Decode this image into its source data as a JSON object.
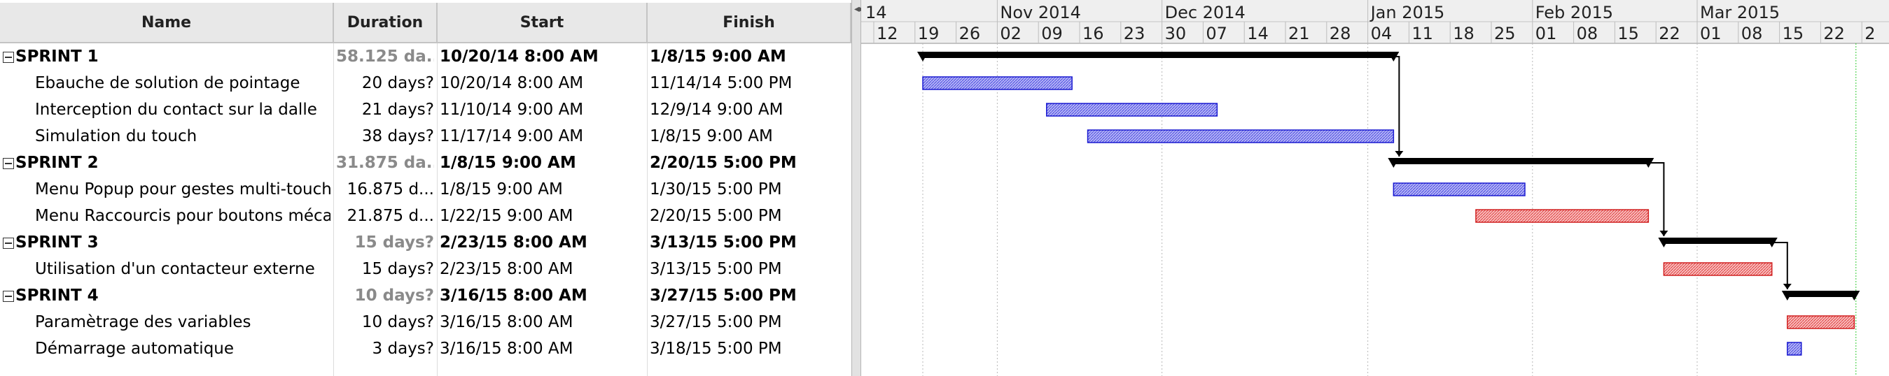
{
  "table": {
    "headers": {
      "name": "Name",
      "duration": "Duration",
      "start": "Start",
      "finish": "Finish"
    },
    "rows": [
      {
        "name": "SPRINT 1",
        "duration": "58.125 da...",
        "start": "10/20/14 8:00 AM",
        "finish": "1/8/15 9:00 AM",
        "summary": true
      },
      {
        "name": "Ebauche de solution de pointage",
        "duration": "20 days?",
        "start": "10/20/14 8:00 AM",
        "finish": "11/14/14 5:00 PM",
        "summary": false
      },
      {
        "name": "Interception du contact sur la dalle",
        "duration": "21 days?",
        "start": "11/10/14 9:00 AM",
        "finish": "12/9/14 9:00 AM",
        "summary": false
      },
      {
        "name": "Simulation du touch",
        "duration": "38 days?",
        "start": "11/17/14 9:00 AM",
        "finish": "1/8/15 9:00 AM",
        "summary": false
      },
      {
        "name": "SPRINT 2",
        "duration": "31.875 da...",
        "start": "1/8/15 9:00 AM",
        "finish": "2/20/15 5:00 PM",
        "summary": true
      },
      {
        "name": "Menu Popup pour gestes multi-touch",
        "duration": "16.875 d...",
        "start": "1/8/15 9:00 AM",
        "finish": "1/30/15 5:00 PM",
        "summary": false
      },
      {
        "name": "Menu Raccourcis pour boutons méca",
        "duration": "21.875 d...",
        "start": "1/22/15 9:00 AM",
        "finish": "2/20/15 5:00 PM",
        "summary": false
      },
      {
        "name": "SPRINT 3",
        "duration": "15 days?",
        "start": "2/23/15 8:00 AM",
        "finish": "3/13/15 5:00 PM",
        "summary": true
      },
      {
        "name": "Utilisation d'un contacteur externe",
        "duration": "15 days?",
        "start": "2/23/15 8:00 AM",
        "finish": "3/13/15 5:00 PM",
        "summary": false
      },
      {
        "name": "SPRINT 4",
        "duration": "10 days?",
        "start": "3/16/15 8:00 AM",
        "finish": "3/27/15 5:00 PM",
        "summary": true
      },
      {
        "name": "Paramètrage des variables",
        "duration": "10 days?",
        "start": "3/16/15 8:00 AM",
        "finish": "3/27/15 5:00 PM",
        "summary": false
      },
      {
        "name": "Démarrage automatique",
        "duration": "3 days?",
        "start": "3/16/15 8:00 AM",
        "finish": "3/18/15 5:00 PM",
        "summary": false
      }
    ]
  },
  "splitter": {
    "grip_icon": "◂▸"
  },
  "timeline": {
    "months": [
      {
        "label": "14",
        "date": "2014-10-12"
      },
      {
        "label": "Nov 2014",
        "date": "2014-11-02"
      },
      {
        "label": "Dec 2014",
        "date": "2014-11-30"
      },
      {
        "label": "Jan 2015",
        "date": "2015-01-04"
      },
      {
        "label": "Feb 2015",
        "date": "2015-02-01"
      },
      {
        "label": "Mar 2015",
        "date": "2015-03-01"
      }
    ],
    "weeks": [
      "12",
      "19",
      "26",
      "02",
      "09",
      "16",
      "23",
      "30",
      "07",
      "14",
      "21",
      "28",
      "04",
      "11",
      "18",
      "25",
      "01",
      "08",
      "15",
      "22",
      "01",
      "08",
      "15",
      "22",
      "2"
    ],
    "first_week_date": "2014-10-12",
    "today_date": "2015-03-28",
    "colors": {
      "critical_fill": "#f4a0a0",
      "critical_stroke": "#d02020",
      "normal_fill": "#9090f0",
      "normal_stroke": "#1a1ad0",
      "summary": "#000000",
      "today_line": "#33cc33",
      "grid": "#b8b8b8"
    },
    "bars": [
      {
        "kind": "summary",
        "start": "2014-10-20T08:00",
        "finish": "2015-01-08T09:00"
      },
      {
        "kind": "normal",
        "start": "2014-10-20T08:00",
        "finish": "2014-11-14T17:00"
      },
      {
        "kind": "normal",
        "start": "2014-11-10T09:00",
        "finish": "2014-12-09T09:00"
      },
      {
        "kind": "normal",
        "start": "2014-11-17T09:00",
        "finish": "2015-01-08T09:00"
      },
      {
        "kind": "summary",
        "start": "2015-01-08T09:00",
        "finish": "2015-02-20T17:00"
      },
      {
        "kind": "normal",
        "start": "2015-01-08T09:00",
        "finish": "2015-01-30T17:00"
      },
      {
        "kind": "critical",
        "start": "2015-01-22T09:00",
        "finish": "2015-02-20T17:00"
      },
      {
        "kind": "summary",
        "start": "2015-02-23T08:00",
        "finish": "2015-03-13T17:00"
      },
      {
        "kind": "critical",
        "start": "2015-02-23T08:00",
        "finish": "2015-03-13T17:00"
      },
      {
        "kind": "summary",
        "start": "2015-03-16T08:00",
        "finish": "2015-03-27T17:00"
      },
      {
        "kind": "critical",
        "start": "2015-03-16T08:00",
        "finish": "2015-03-27T17:00"
      },
      {
        "kind": "normal",
        "start": "2015-03-16T08:00",
        "finish": "2015-03-18T17:00"
      }
    ],
    "links": [
      {
        "from": 0,
        "to": 4
      },
      {
        "from": 4,
        "to": 7
      },
      {
        "from": 7,
        "to": 9
      }
    ]
  }
}
